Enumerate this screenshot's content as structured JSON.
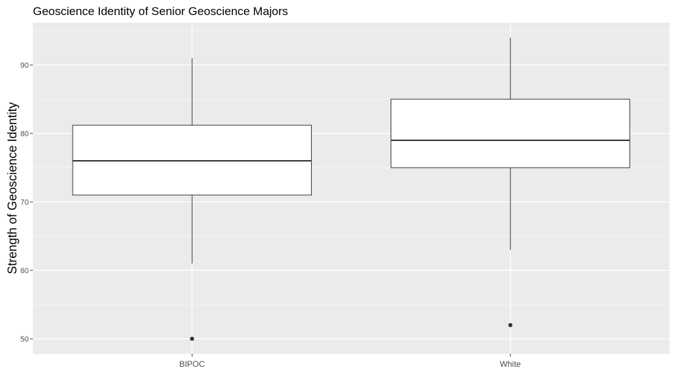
{
  "chart_data": {
    "type": "boxplot",
    "title": "Geoscience Identity of Senior Geoscience Majors",
    "xlabel": "",
    "ylabel": "Strength of Geoscience Identity",
    "ylim": [
      47.8,
      96.2
    ],
    "y_ticks": [
      50,
      60,
      70,
      80,
      90
    ],
    "categories": [
      "BIPOC",
      "White"
    ],
    "boxes": [
      {
        "category": "BIPOC",
        "whisker_low": 61,
        "q1": 71,
        "median": 76,
        "q3": 81.2,
        "whisker_high": 91,
        "outliers": [
          50
        ]
      },
      {
        "category": "White",
        "whisker_low": 63,
        "q1": 75,
        "median": 79,
        "q3": 85,
        "whisker_high": 94,
        "outliers": [
          52
        ]
      }
    ],
    "grid": true,
    "legend": "none",
    "colors": {
      "panel": "#ebebeb",
      "grid": "#ffffff",
      "box_fill": "#ffffff",
      "box_line": "#333333",
      "outlier": "#333333",
      "tick_text": "#4d4d4d"
    }
  }
}
